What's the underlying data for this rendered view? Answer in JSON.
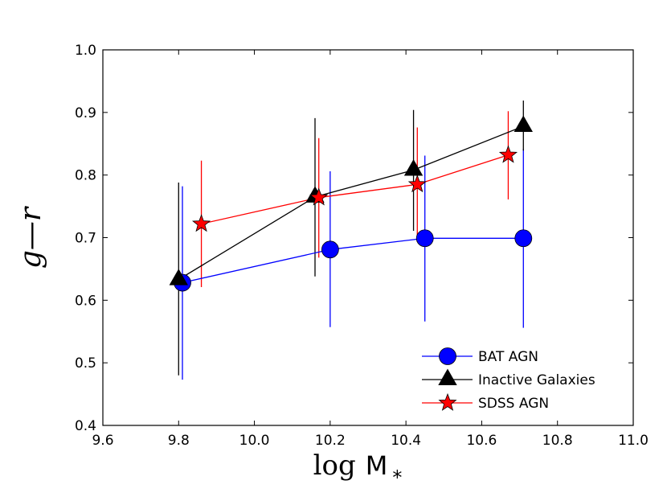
{
  "chart_data": {
    "type": "line",
    "title": "",
    "xlabel_parts": [
      "log",
      "M",
      "*"
    ],
    "ylabel": "g—r",
    "xlim": [
      9.6,
      11.0
    ],
    "ylim": [
      0.4,
      1.0
    ],
    "x_ticks": [
      "9.6",
      "9.8",
      "10.0",
      "10.2",
      "10.4",
      "10.6",
      "10.8",
      "11.0"
    ],
    "y_ticks": [
      "0.4",
      "0.5",
      "0.6",
      "0.7",
      "0.8",
      "0.9",
      "1.0"
    ],
    "x_tick_values": [
      9.6,
      9.8,
      10.0,
      10.2,
      10.4,
      10.6,
      10.8,
      11.0
    ],
    "y_tick_values": [
      0.4,
      0.5,
      0.6,
      0.7,
      0.8,
      0.9,
      1.0
    ],
    "grid": false,
    "legend_position": "lower-right",
    "series": [
      {
        "name": "BAT AGN",
        "marker": "circle",
        "color": "#0000ff",
        "x": [
          9.81,
          10.2,
          10.45,
          10.71
        ],
        "y": [
          0.628,
          0.681,
          0.699,
          0.699
        ],
        "err_low": [
          0.473,
          0.557,
          0.566,
          0.556
        ],
        "err_high": [
          0.782,
          0.806,
          0.831,
          0.842
        ]
      },
      {
        "name": "Inactive Galaxies",
        "marker": "triangle",
        "color": "#000000",
        "x": [
          9.8,
          10.16,
          10.42,
          10.71
        ],
        "y": [
          0.633,
          0.765,
          0.808,
          0.878
        ],
        "err_low": [
          0.48,
          0.638,
          0.711,
          0.839
        ],
        "err_high": [
          0.788,
          0.891,
          0.904,
          0.919
        ]
      },
      {
        "name": "SDSS AGN",
        "marker": "star",
        "color": "#ff0000",
        "x": [
          9.86,
          10.17,
          10.43,
          10.67
        ],
        "y": [
          0.722,
          0.764,
          0.785,
          0.832
        ],
        "err_low": [
          0.621,
          0.668,
          0.693,
          0.761
        ],
        "err_high": [
          0.823,
          0.859,
          0.876,
          0.902
        ]
      }
    ]
  }
}
